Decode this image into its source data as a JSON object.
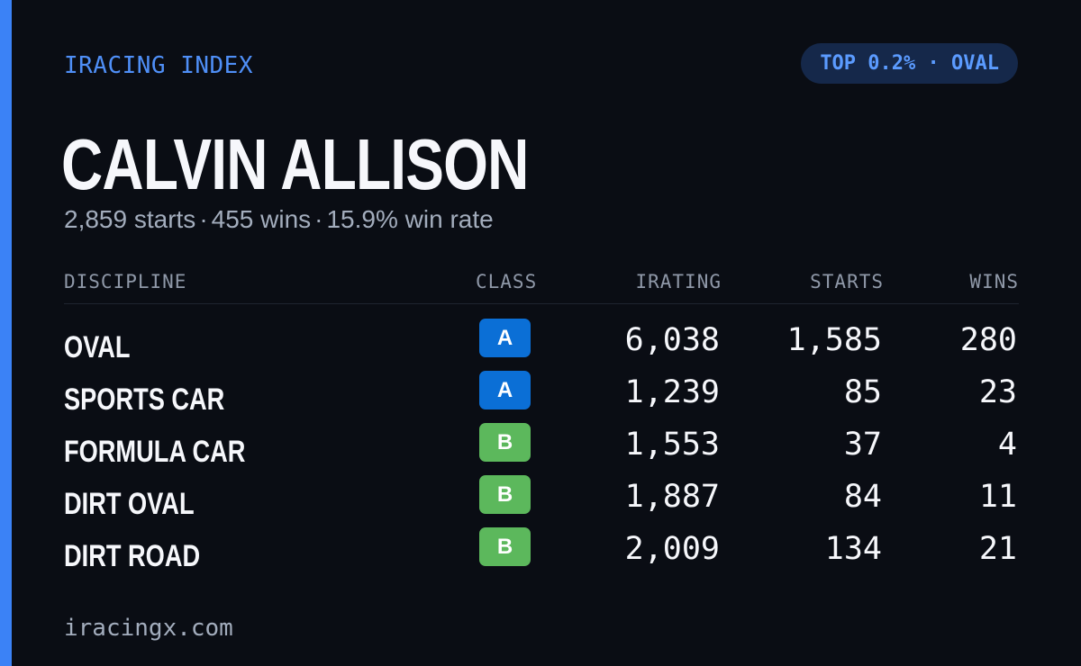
{
  "header": {
    "brand": "IRACING INDEX",
    "badge": "TOP 0.2% · OVAL"
  },
  "driver": {
    "name": "CALVIN ALLISON",
    "starts": "2,859 starts",
    "wins": "455 wins",
    "win_rate": "15.9% win rate",
    "separator": "·"
  },
  "table": {
    "columns": {
      "discipline": "DISCIPLINE",
      "class": "CLASS",
      "irating": "IRATING",
      "starts": "STARTS",
      "wins": "WINS"
    },
    "rows": [
      {
        "discipline": "OVAL",
        "class": "A",
        "irating": "6,038",
        "starts": "1,585",
        "wins": "280"
      },
      {
        "discipline": "SPORTS CAR",
        "class": "A",
        "irating": "1,239",
        "starts": "85",
        "wins": "23"
      },
      {
        "discipline": "FORMULA CAR",
        "class": "B",
        "irating": "1,553",
        "starts": "37",
        "wins": "4"
      },
      {
        "discipline": "DIRT OVAL",
        "class": "B",
        "irating": "1,887",
        "starts": "84",
        "wins": "11"
      },
      {
        "discipline": "DIRT ROAD",
        "class": "B",
        "irating": "2,009",
        "starts": "134",
        "wins": "21"
      }
    ]
  },
  "class_colors": {
    "A": "#0b6fd6",
    "B": "#5cb85c"
  },
  "colors": {
    "accent": "#3b82f6",
    "background": "#0a0d14"
  },
  "footer": {
    "site": "iracingx.com"
  }
}
